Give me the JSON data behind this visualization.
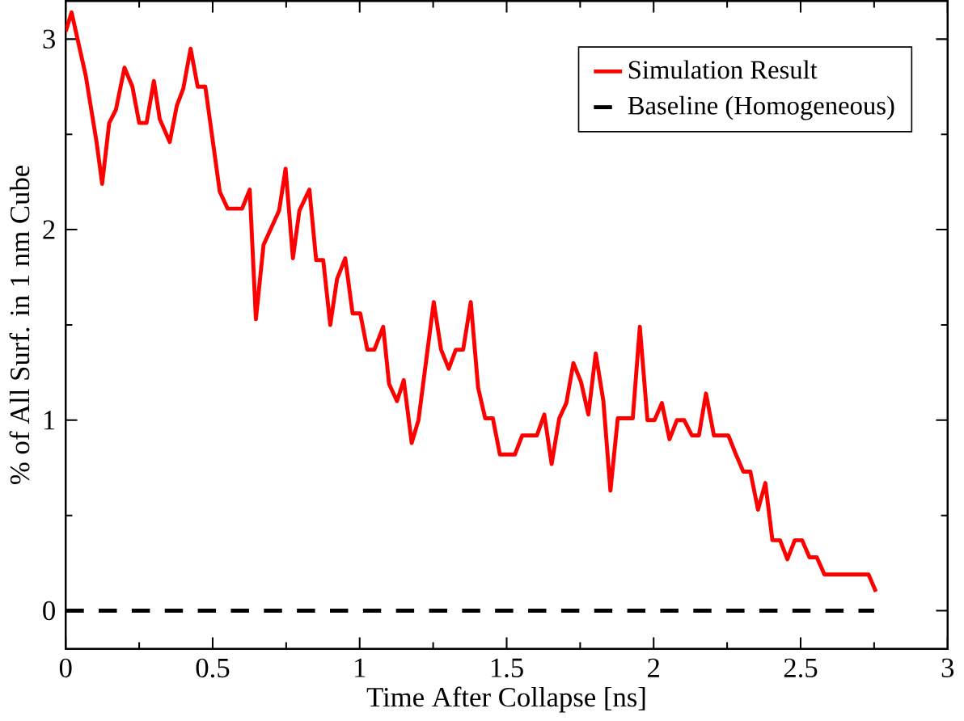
{
  "chart_data": {
    "type": "line",
    "xlabel": "Time After Collapse [ns]",
    "ylabel": "% of All Surf. in 1 nm Cube",
    "xlim": [
      0,
      3
    ],
    "ylim": [
      -0.2,
      3.2
    ],
    "xticks": [
      0,
      0.5,
      1,
      1.5,
      2,
      2.5,
      3
    ],
    "yticks": [
      0,
      1,
      2,
      3
    ],
    "legend": "top right",
    "grid": false,
    "marker": "none",
    "series": [
      {
        "name": "Simulation Result",
        "color": "#ff0000",
        "line_style": "solid",
        "x": [
          0,
          0.02,
          0.068,
          0.105,
          0.124,
          0.148,
          0.171,
          0.2,
          0.227,
          0.25,
          0.275,
          0.3,
          0.32,
          0.354,
          0.378,
          0.4,
          0.425,
          0.449,
          0.475,
          0.524,
          0.551,
          0.6,
          0.626,
          0.647,
          0.673,
          0.726,
          0.748,
          0.773,
          0.795,
          0.829,
          0.852,
          0.876,
          0.9,
          0.923,
          0.951,
          0.976,
          1.002,
          1.026,
          1.05,
          1.08,
          1.1,
          1.127,
          1.15,
          1.177,
          1.2,
          1.252,
          1.277,
          1.303,
          1.327,
          1.352,
          1.378,
          1.403,
          1.427,
          1.453,
          1.477,
          1.528,
          1.553,
          1.603,
          1.628,
          1.653,
          1.679,
          1.703,
          1.727,
          1.753,
          1.778,
          1.803,
          1.829,
          1.853,
          1.878,
          1.929,
          1.953,
          1.979,
          2.003,
          2.028,
          2.054,
          2.079,
          2.104,
          2.13,
          2.154,
          2.178,
          2.205,
          2.254,
          2.28,
          2.305,
          2.329,
          2.355,
          2.38,
          2.404,
          2.43,
          2.455,
          2.48,
          2.505,
          2.53,
          2.555,
          2.581,
          2.731,
          2.756
        ],
        "values": [
          3.04,
          3.14,
          2.81,
          2.46,
          2.24,
          2.56,
          2.63,
          2.85,
          2.75,
          2.56,
          2.56,
          2.78,
          2.58,
          2.46,
          2.65,
          2.74,
          2.95,
          2.75,
          2.75,
          2.2,
          2.11,
          2.11,
          2.21,
          1.53,
          1.92,
          2.1,
          2.32,
          1.85,
          2.1,
          2.21,
          1.84,
          1.84,
          1.5,
          1.74,
          1.85,
          1.56,
          1.56,
          1.37,
          1.37,
          1.49,
          1.19,
          1.1,
          1.21,
          0.88,
          1.0,
          1.62,
          1.37,
          1.27,
          1.37,
          1.37,
          1.62,
          1.17,
          1.01,
          1.01,
          0.82,
          0.82,
          0.92,
          0.92,
          1.03,
          0.77,
          1.01,
          1.09,
          1.3,
          1.2,
          1.03,
          1.35,
          1.1,
          0.63,
          1.01,
          1.01,
          1.49,
          1.0,
          1.0,
          1.09,
          0.9,
          1.0,
          1.0,
          0.92,
          0.92,
          1.14,
          0.92,
          0.92,
          0.82,
          0.73,
          0.73,
          0.53,
          0.67,
          0.37,
          0.37,
          0.27,
          0.37,
          0.37,
          0.28,
          0.28,
          0.19,
          0.19,
          0.1
        ]
      },
      {
        "name": "Baseline (Homogeneous)",
        "color": "#000000",
        "line_style": "dashed",
        "x": [
          0,
          2.75
        ],
        "values": [
          0,
          0
        ]
      }
    ]
  }
}
